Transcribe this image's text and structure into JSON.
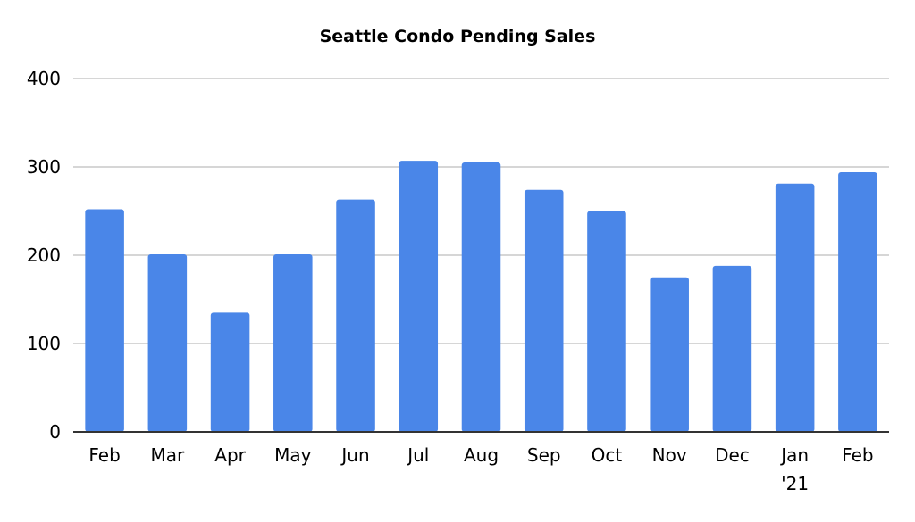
{
  "chart_data": {
    "type": "bar",
    "title": "Seattle Condo Pending Sales",
    "xlabel": "",
    "ylabel": "",
    "categories": [
      "Feb",
      "Mar",
      "Apr",
      "May",
      "Jun",
      "Jul",
      "Aug",
      "Sep",
      "Oct",
      "Nov",
      "Dec",
      "Jan '21",
      "Feb"
    ],
    "values": [
      252,
      201,
      135,
      201,
      263,
      307,
      305,
      274,
      250,
      175,
      188,
      281,
      294
    ],
    "ylim": [
      0,
      400
    ],
    "yticks": [
      0,
      100,
      200,
      300,
      400
    ],
    "grid": true,
    "legend": "none",
    "bar_color": "#4a86e8",
    "grid_color": "#c8c8c8",
    "axis_color": "#333333"
  }
}
